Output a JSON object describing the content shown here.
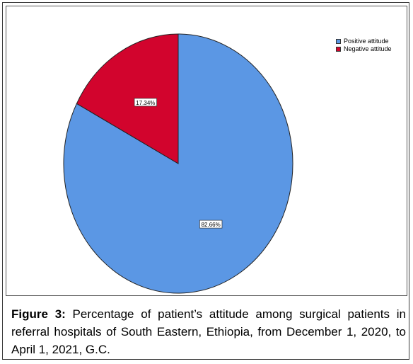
{
  "chart_data": {
    "type": "pie",
    "categories": [
      "Positive attitude",
      "Negative attitude"
    ],
    "values": [
      82.66,
      17.34
    ],
    "data_labels": [
      "82.66%",
      "17.34%"
    ],
    "colors": [
      "#5b97e4",
      "#d2042d"
    ],
    "legend_position": "top-right",
    "start_angle_position": "top, clockwise",
    "title": "",
    "xlabel": "",
    "ylabel": ""
  },
  "legend": {
    "items": [
      {
        "label": "Positive attitude",
        "color": "#5b97e4"
      },
      {
        "label": "Negative attitude",
        "color": "#d2042d"
      }
    ]
  },
  "caption": {
    "prefix": "Figure 3:",
    "text": " Percentage of patient’s attitude among surgical patients in referral hospitals of South Eastern, Ethiopia, from December 1, 2020, to April 1, 2021, G.C."
  }
}
